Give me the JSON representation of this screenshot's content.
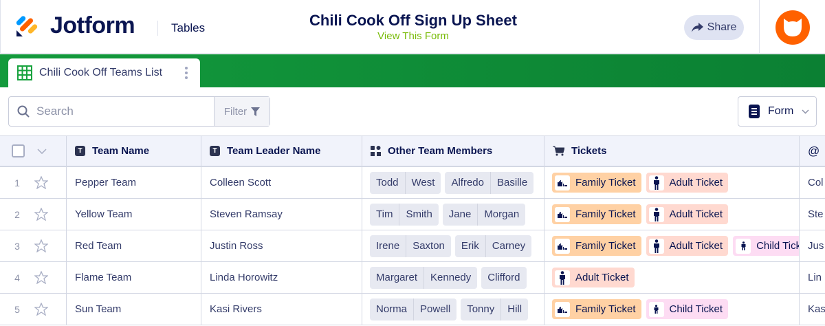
{
  "header": {
    "brand": "Jotform",
    "section": "Tables",
    "title": "Chili Cook Off Sign Up Sheet",
    "subtitle_link": "View This Form",
    "share_label": "Share"
  },
  "tab": {
    "label": "Chili Cook Off Teams List"
  },
  "toolbar": {
    "search_placeholder": "Search",
    "filter_label": "Filter",
    "form_label": "Form"
  },
  "colors": {
    "green": "#0f8c37",
    "accent": "#ff6100",
    "family": "#ffd1a4",
    "adult": "#ffd9d0",
    "child": "#fddcf3"
  },
  "columns": [
    {
      "label": "Team Name",
      "icon": "text-icon"
    },
    {
      "label": "Team Leader Name",
      "icon": "text-icon"
    },
    {
      "label": "Other Team Members",
      "icon": "shapes-icon"
    },
    {
      "label": "Tickets",
      "icon": "cart-icon"
    },
    {
      "label": "",
      "icon": "at-icon"
    }
  ],
  "rows": [
    {
      "num": "1",
      "team": "Pepper Team",
      "leader": "Colleen Scott",
      "members": [
        [
          "Todd",
          "West"
        ],
        [
          "Alfredo",
          "Basille"
        ]
      ],
      "tickets": [
        "Family Ticket",
        "Adult Ticket"
      ],
      "email": "Col"
    },
    {
      "num": "2",
      "team": "Yellow Team",
      "leader": "Steven Ramsay",
      "members": [
        [
          "Tim",
          "Smith"
        ],
        [
          "Jane",
          "Morgan"
        ]
      ],
      "tickets": [
        "Family Ticket",
        "Adult Ticket"
      ],
      "email": "Ste"
    },
    {
      "num": "3",
      "team": "Red Team",
      "leader": "Justin Ross",
      "members": [
        [
          "Irene",
          "Saxton"
        ],
        [
          "Erik",
          "Carney"
        ]
      ],
      "tickets": [
        "Family Ticket",
        "Adult Ticket",
        "Child Ticket"
      ],
      "email": "Jus"
    },
    {
      "num": "4",
      "team": "Flame Team",
      "leader": "Linda Horowitz",
      "members": [
        [
          "Margaret",
          "Kennedy"
        ],
        [
          "Clifford",
          ""
        ]
      ],
      "tickets": [
        "Adult Ticket"
      ],
      "email": "Lin"
    },
    {
      "num": "5",
      "team": "Sun Team",
      "leader": "Kasi Rivers",
      "members": [
        [
          "Norma",
          "Powell"
        ],
        [
          "Tonny",
          "Hill"
        ]
      ],
      "tickets": [
        "Family Ticket",
        "Child Ticket"
      ],
      "email": "Kas"
    }
  ]
}
